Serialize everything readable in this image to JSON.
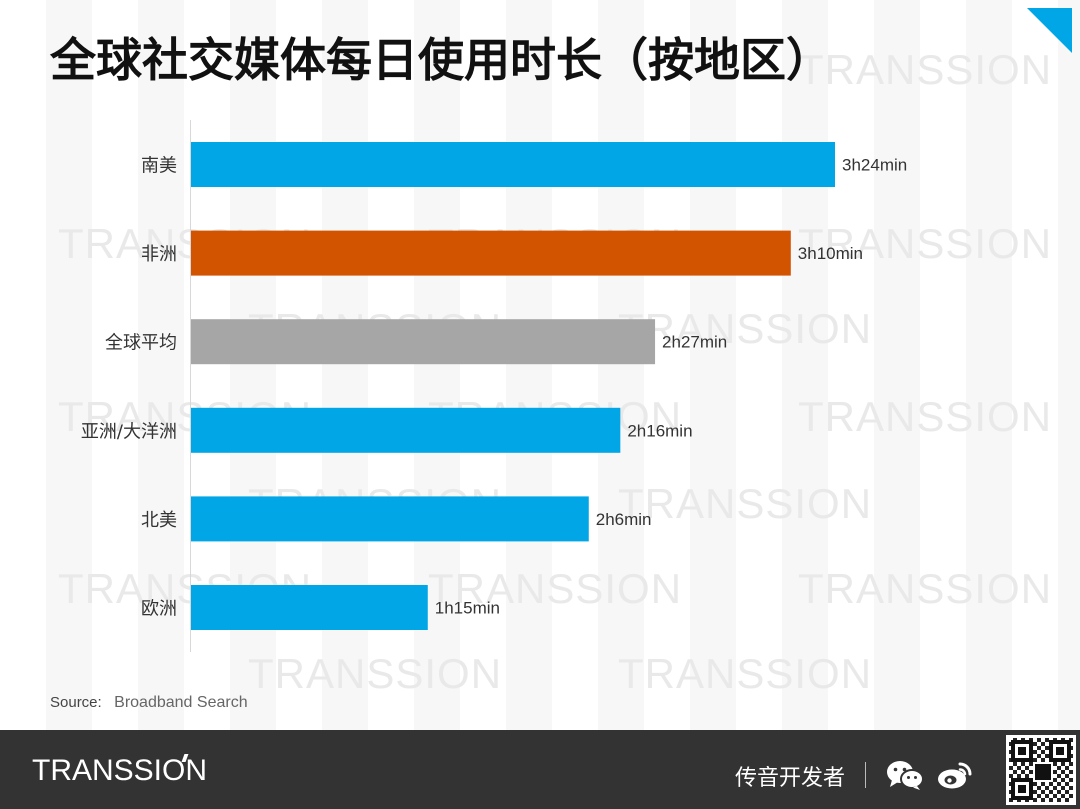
{
  "title": "全球社交媒体每日使用时长（按地区）",
  "watermark": "TRANSSION",
  "chart_data": {
    "type": "bar",
    "orientation": "horizontal",
    "categories": [
      "南美",
      "非洲",
      "全球平均",
      "亚洲/大洋洲",
      "北美",
      "欧洲"
    ],
    "values": [
      204,
      190,
      147,
      136,
      126,
      75
    ],
    "value_unit": "minutes",
    "data_labels": [
      "3h24min",
      "3h10min",
      "2h27min",
      "2h16min",
      "2h6min",
      "1h15min"
    ],
    "bar_colors": [
      "#00a6e6",
      "#d35400",
      "#a6a6a6",
      "#00a6e6",
      "#00a6e6",
      "#00a6e6"
    ],
    "xlim": [
      0,
      220
    ],
    "grid": false,
    "legend": "none"
  },
  "source": {
    "label": "Source:",
    "value": "Broadband Search"
  },
  "footer": {
    "brand": "TRANSSION",
    "channel": "传音开发者",
    "icons": [
      "wechat-icon",
      "weibo-icon",
      "qr-code"
    ]
  }
}
